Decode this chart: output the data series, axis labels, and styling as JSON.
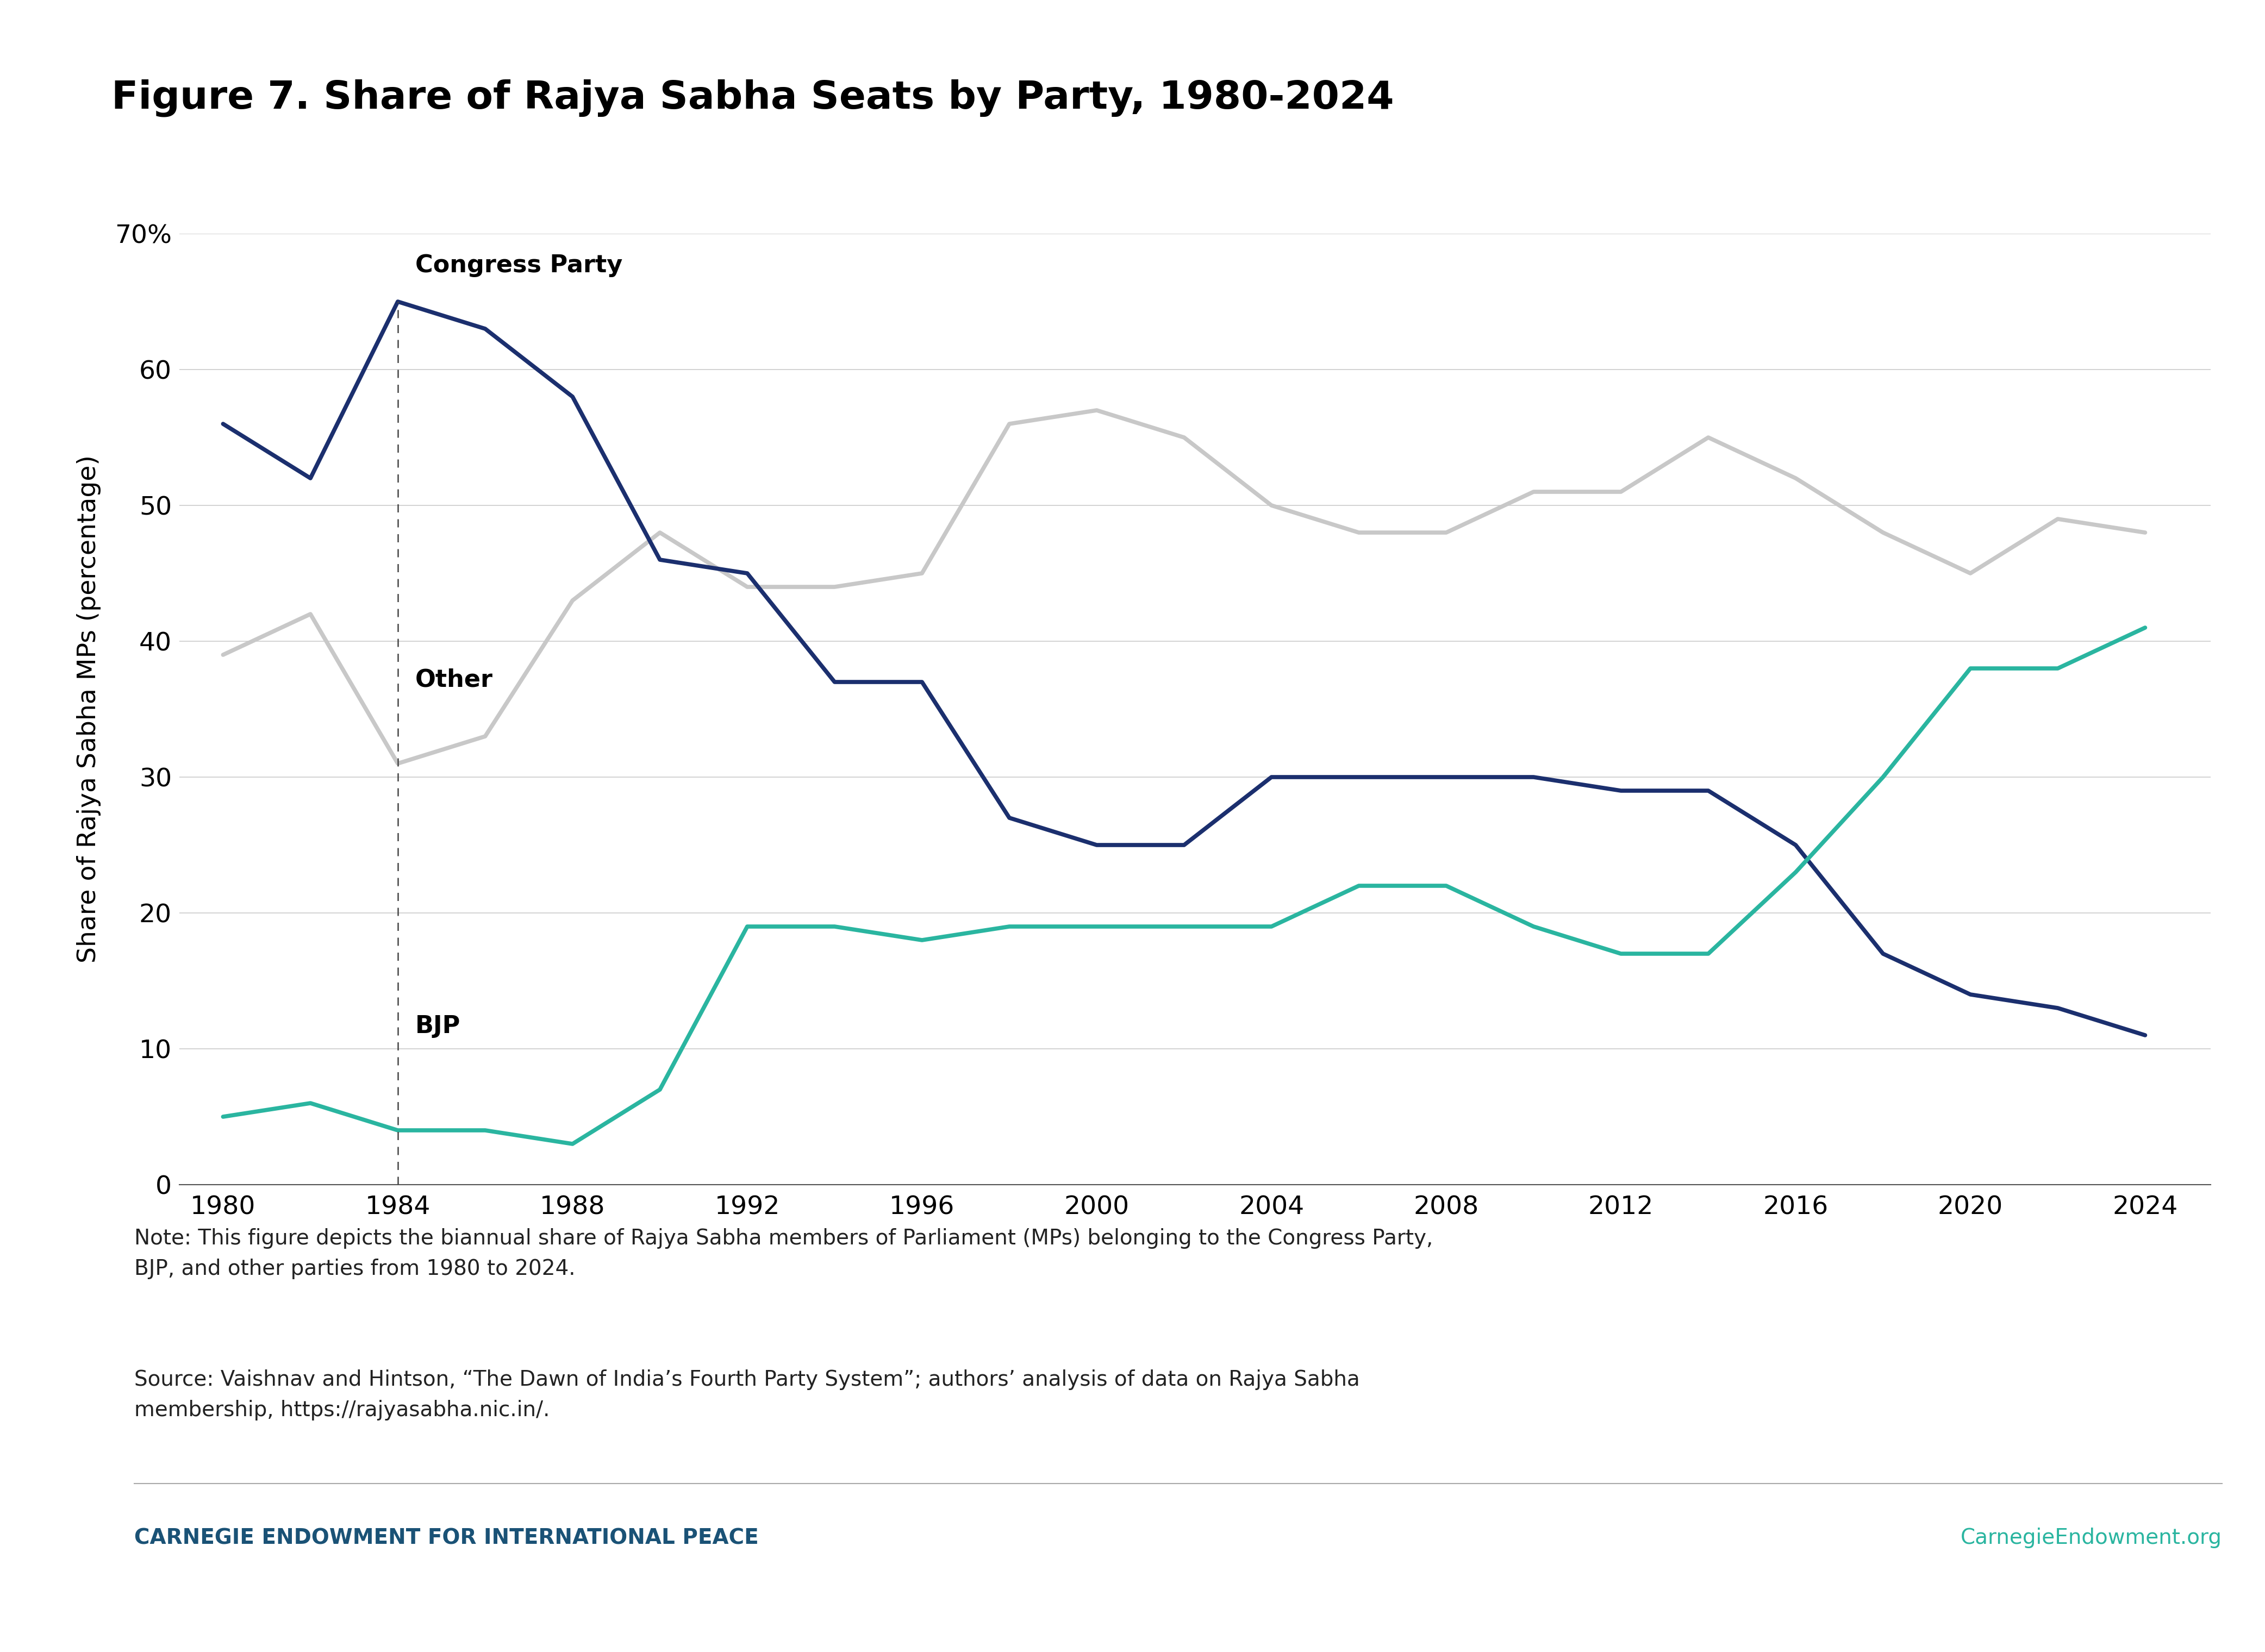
{
  "title": "Figure 7. Share of Rajya Sabha Seats by Party, 1980-2024",
  "ylabel": "Share of Rajya Sabha MPs (percentage)",
  "background_color": "#ffffff",
  "title_fontsize": 52,
  "axis_label_fontsize": 34,
  "tick_fontsize": 34,
  "annotation_fontsize": 32,
  "note_fontsize": 28,
  "footer_fontsize": 28,
  "note_text": "Note: This figure depicts the biannual share of Rajya Sabha members of Parliament (MPs) belonging to the Congress Party,\nBJP, and other parties from 1980 to 2024.",
  "source_text": "Source: Vaishnav and Hintson, “The Dawn of India’s Fourth Party System”; authors’ analysis of data on Rajya Sabha\nmembership, https://rajyasabha.nic.in/.",
  "footer_left": "CARNEGIE ENDOWMENT FOR INTERNATIONAL PEACE",
  "footer_right": "CarnegieEndowment.org",
  "footer_color_left": "#1a5276",
  "footer_color_right": "#2ab5a0",
  "years": [
    1980,
    1982,
    1984,
    1986,
    1988,
    1990,
    1992,
    1994,
    1996,
    1998,
    2000,
    2002,
    2004,
    2006,
    2008,
    2010,
    2012,
    2014,
    2016,
    2018,
    2020,
    2022,
    2024
  ],
  "congress": [
    56,
    52,
    65,
    63,
    58,
    46,
    45,
    37,
    37,
    27,
    25,
    25,
    30,
    30,
    30,
    30,
    29,
    29,
    25,
    17,
    14,
    13,
    11
  ],
  "bjp": [
    5,
    6,
    4,
    4,
    3,
    7,
    19,
    19,
    18,
    19,
    19,
    19,
    19,
    22,
    22,
    19,
    17,
    17,
    23,
    30,
    38,
    38,
    41
  ],
  "other": [
    39,
    42,
    31,
    33,
    43,
    48,
    44,
    44,
    45,
    56,
    57,
    55,
    50,
    48,
    48,
    51,
    51,
    55,
    52,
    48,
    45,
    49,
    48
  ],
  "congress_color": "#1b2f6e",
  "bjp_color": "#2ab5a0",
  "other_color": "#c8c8c8",
  "ylim": [
    0,
    70
  ],
  "yticks": [
    0,
    10,
    20,
    30,
    40,
    50,
    60,
    70
  ],
  "xticks": [
    1980,
    1984,
    1988,
    1992,
    1996,
    2000,
    2004,
    2008,
    2012,
    2016,
    2020,
    2024
  ],
  "linewidth": 5.5
}
